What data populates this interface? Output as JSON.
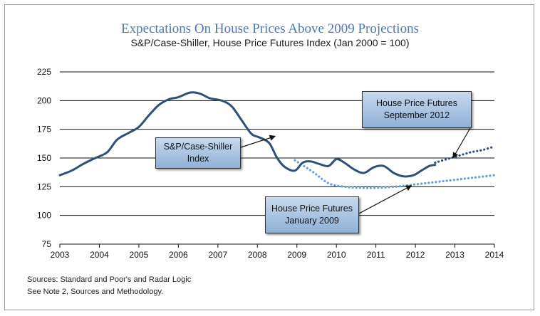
{
  "chart_data": {
    "type": "line",
    "title": "Expectations On House Prices Above 2009 Projections",
    "subtitle": "S&P/Case-Shiller, House Price Futures Index (Jan 2000 = 100)",
    "xlim": [
      2003,
      2014
    ],
    "ylim": [
      75,
      225
    ],
    "x_ticks": [
      "2003",
      "2004",
      "2005",
      "2006",
      "2007",
      "2008",
      "2009",
      "2010",
      "2011",
      "2012",
      "2013",
      "2014"
    ],
    "y_ticks": [
      "75",
      "100",
      "125",
      "150",
      "175",
      "200",
      "225"
    ],
    "grid": "horizontal",
    "series": [
      {
        "name": "S&P/Case-Shiller Index",
        "style": "solid",
        "color": "#2e4f78",
        "x": [
          2003.0,
          2003.3,
          2003.6,
          2003.9,
          2004.2,
          2004.45,
          2004.75,
          2005.0,
          2005.25,
          2005.5,
          2005.75,
          2006.0,
          2006.3,
          2006.55,
          2006.8,
          2007.1,
          2007.35,
          2007.6,
          2007.85,
          2008.05,
          2008.3,
          2008.5,
          2008.7,
          2008.95,
          2009.15,
          2009.35,
          2009.55,
          2009.8,
          2010.0,
          2010.2,
          2010.45,
          2010.7,
          2010.95,
          2011.2,
          2011.45,
          2011.7,
          2011.95,
          2012.15,
          2012.35,
          2012.5
        ],
        "y": [
          135,
          139,
          145,
          150,
          155,
          166,
          172,
          177,
          187,
          196,
          201,
          203,
          207,
          206,
          202,
          200,
          195,
          183,
          171,
          168,
          163,
          150,
          142,
          139,
          146,
          147,
          145,
          143,
          149,
          146,
          140,
          137,
          142,
          143,
          137,
          134,
          135,
          139,
          143,
          144
        ]
      },
      {
        "name": "House Price Futures January 2009",
        "style": "dotted",
        "color": "#6a9ed6",
        "x": [
          2008.95,
          2009.4,
          2009.8,
          2010.2,
          2010.6,
          2011.0,
          2011.5,
          2012.0,
          2012.5,
          2013.0,
          2013.5,
          2014.0
        ],
        "y": [
          148,
          138,
          128,
          125,
          124,
          124,
          125,
          127,
          129,
          131,
          133,
          135
        ]
      },
      {
        "name": "House Price Futures September 2012",
        "style": "dotted",
        "color": "#2e4f78",
        "x": [
          2012.5,
          2012.8,
          2013.1,
          2013.4,
          2013.7,
          2014.0
        ],
        "y": [
          146,
          149,
          152,
          155,
          157,
          160
        ]
      }
    ],
    "annotations": [
      {
        "line1": "S&P/Case-Shiller",
        "line2": "Index"
      },
      {
        "line1": "House Price Futures",
        "line2": "January 2009"
      },
      {
        "line1": "House Price Futures",
        "line2": "September 2012"
      }
    ]
  },
  "sources": {
    "line1": "Sources:  Standard and Poor's and Radar Logic",
    "line2": "See Note 2, Sources and Methodology."
  }
}
